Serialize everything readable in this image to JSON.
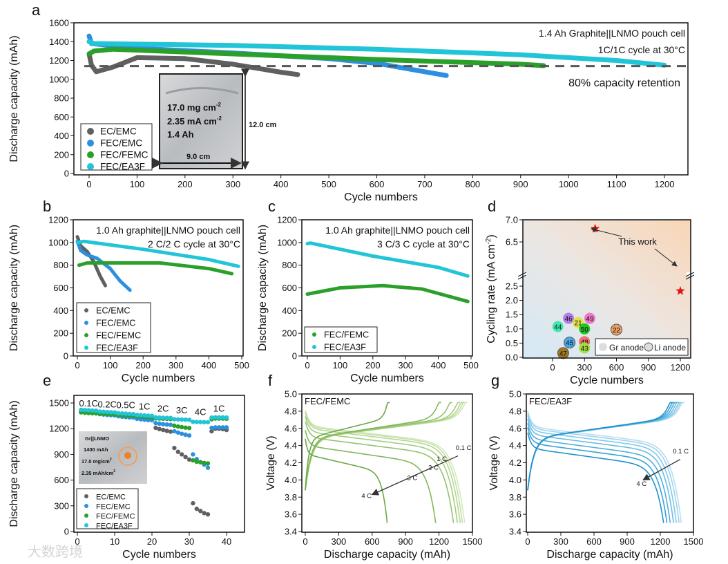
{
  "watermark": "大数跨境",
  "chart_data": [
    {
      "id": "a",
      "type": "scatter",
      "panel_letter": "a",
      "title": "1.4 Ah Graphite||LNMO pouch cell",
      "subtitle": "1C/1C cycle at 30°C",
      "xlabel": "Cycle numbers",
      "ylabel": "Discharge capacity (mAh)",
      "xlim": [
        0,
        1200
      ],
      "ylim": [
        0,
        1600
      ],
      "xticks": [
        "0",
        "100",
        "200",
        "300",
        "400",
        "500",
        "600",
        "700",
        "800",
        "900",
        "1000",
        "1100",
        "1200"
      ],
      "yticks": [
        "0",
        "200",
        "400",
        "600",
        "800",
        "1000",
        "1200",
        "1400",
        "1600"
      ],
      "reference_line": {
        "value": 1140,
        "label": "80% capacity retention",
        "color": "#555555"
      },
      "legend_position": "bottom-left",
      "series": [
        {
          "name": "EC/EMC",
          "color": "#606060",
          "points": [
            [
              0,
              1270
            ],
            [
              5,
              1150
            ],
            [
              15,
              1080
            ],
            [
              50,
              1130
            ],
            [
              100,
              1230
            ],
            [
              200,
              1220
            ],
            [
              300,
              1160
            ],
            [
              400,
              1075
            ],
            [
              435,
              1050
            ]
          ]
        },
        {
          "name": "FEC/EMC",
          "color": "#2e8fe0",
          "points": [
            [
              0,
              1460
            ],
            [
              5,
              1380
            ],
            [
              100,
              1330
            ],
            [
              300,
              1280
            ],
            [
              500,
              1220
            ],
            [
              600,
              1170
            ],
            [
              700,
              1080
            ],
            [
              745,
              1040
            ]
          ]
        },
        {
          "name": "FEC/FEMC",
          "color": "#2aa02a",
          "points": [
            [
              0,
              1270
            ],
            [
              10,
              1300
            ],
            [
              50,
              1320
            ],
            [
              300,
              1270
            ],
            [
              600,
              1210
            ],
            [
              900,
              1160
            ],
            [
              948,
              1145
            ]
          ]
        },
        {
          "name": "FEC/EA3F",
          "color": "#22c4d8",
          "points": [
            [
              0,
              1400
            ],
            [
              10,
              1380
            ],
            [
              300,
              1360
            ],
            [
              600,
              1320
            ],
            [
              900,
              1260
            ],
            [
              1100,
              1200
            ],
            [
              1200,
              1150
            ]
          ]
        }
      ],
      "inset": {
        "loading": "17.0 mg cm",
        "loading_sup": "-2",
        "current": "2.35 mA cm",
        "current_sup": "-2",
        "capacity": "1.4 Ah",
        "height": "12.0 cm",
        "width": "9.0 cm"
      }
    },
    {
      "id": "b",
      "type": "scatter",
      "panel_letter": "b",
      "title": "1.0 Ah graphite||LNMO pouch cell",
      "subtitle": "2 C/2 C cycle at 30°C",
      "xlabel": "Cycle numbers",
      "ylabel": "Discharge capacity (mAh)",
      "xlim": [
        0,
        500
      ],
      "ylim": [
        0,
        1200
      ],
      "xticks": [
        "0",
        "100",
        "200",
        "300",
        "400",
        "500"
      ],
      "yticks": [
        "0",
        "200",
        "400",
        "600",
        "800",
        "1000",
        "1200"
      ],
      "legend_position": "bottom-left",
      "series": [
        {
          "name": "EC/EMC",
          "color": "#606060",
          "points": [
            [
              0,
              1050
            ],
            [
              10,
              970
            ],
            [
              30,
              920
            ],
            [
              50,
              830
            ],
            [
              70,
              700
            ],
            [
              85,
              620
            ]
          ]
        },
        {
          "name": "FEC/EMC",
          "color": "#2e8fe0",
          "points": [
            [
              0,
              1010
            ],
            [
              10,
              930
            ],
            [
              30,
              890
            ],
            [
              60,
              860
            ],
            [
              100,
              770
            ],
            [
              130,
              660
            ],
            [
              160,
              580
            ]
          ]
        },
        {
          "name": "FEC/FEMC",
          "color": "#2aa02a",
          "points": [
            [
              5,
              800
            ],
            [
              30,
              820
            ],
            [
              250,
              820
            ],
            [
              400,
              770
            ],
            [
              470,
              725
            ]
          ]
        },
        {
          "name": "FEC/EA3F",
          "color": "#22c4d8",
          "points": [
            [
              0,
              1000
            ],
            [
              20,
              1010
            ],
            [
              200,
              940
            ],
            [
              400,
              850
            ],
            [
              490,
              790
            ]
          ]
        }
      ]
    },
    {
      "id": "c",
      "type": "scatter",
      "panel_letter": "c",
      "title": "1.0 Ah graphite||LNMO pouch cell",
      "subtitle": "3 C/3 C cycle at 30°C",
      "xlabel": "Cycle numbers",
      "ylabel": "Discharge capacity (mAh)",
      "xlim": [
        0,
        500
      ],
      "ylim": [
        0,
        1200
      ],
      "xticks": [
        "0",
        "100",
        "200",
        "300",
        "400",
        "500"
      ],
      "yticks": [
        "0",
        "200",
        "400",
        "600",
        "800",
        "1000",
        "1200"
      ],
      "legend_position": "bottom-left",
      "series": [
        {
          "name": "FEC/FEMC",
          "color": "#2aa02a",
          "points": [
            [
              0,
              545
            ],
            [
              100,
              600
            ],
            [
              230,
              620
            ],
            [
              350,
              590
            ],
            [
              490,
              480
            ]
          ]
        },
        {
          "name": "FEC/EA3F",
          "color": "#22c4d8",
          "points": [
            [
              0,
              990
            ],
            [
              10,
              995
            ],
            [
              200,
              880
            ],
            [
              400,
              780
            ],
            [
              490,
              705
            ]
          ]
        }
      ]
    },
    {
      "id": "d",
      "type": "scatter",
      "panel_letter": "d",
      "xlabel": "Cycle numbers",
      "ylabel": "Cycling rate (mA cm",
      "ylabel_sup": "-2",
      "ylabel_end": ")",
      "xlim": [
        0,
        1200
      ],
      "ylim": [
        0,
        7.0
      ],
      "y_break": [
        2.75,
        6.25
      ],
      "xticks": [
        "0",
        "300",
        "600",
        "900",
        "1200"
      ],
      "yticks": [
        "0.0",
        "0.5",
        "1.0",
        "1.5",
        "2.0",
        "2.5",
        "6.5",
        "7.0"
      ],
      "annotation": "This work",
      "legend": [
        "Gr anode",
        "Li anode"
      ],
      "legend_position": "bottom-right",
      "points": [
        {
          "label": "46",
          "x": 150,
          "y": 1.37,
          "color": "#b57be8",
          "anode": "Gr"
        },
        {
          "label": "21",
          "x": 240,
          "y": 1.22,
          "color": "#e2e04e",
          "anode": "Gr"
        },
        {
          "label": "49",
          "x": 350,
          "y": 1.37,
          "color": "#ee77c8",
          "anode": "Gr"
        },
        {
          "label": "44",
          "x": 50,
          "y": 1.08,
          "color": "#40e8b0",
          "anode": "Gr"
        },
        {
          "label": "50",
          "x": 300,
          "y": 1.0,
          "color": "#22c422",
          "anode": "Gr"
        },
        {
          "label": "22",
          "x": 600,
          "y": 0.97,
          "color": "#e8a060",
          "anode": "Li"
        },
        {
          "label": "45",
          "x": 160,
          "y": 0.52,
          "color": "#4aa8e8",
          "anode": "Li"
        },
        {
          "label": "48",
          "x": 300,
          "y": 0.55,
          "color": "#ee7070",
          "anode": "Gr"
        },
        {
          "label": "43",
          "x": 300,
          "y": 0.33,
          "color": "#a0e040",
          "anode": "Gr"
        },
        {
          "label": "47",
          "x": 100,
          "y": 0.15,
          "color": "#a07820",
          "anode": "Li"
        }
      ],
      "this_work": [
        {
          "x": 400,
          "y": 6.8
        },
        {
          "x": 1200,
          "y": 2.33
        }
      ],
      "star_color": "#e81010"
    },
    {
      "id": "e",
      "type": "scatter",
      "panel_letter": "e",
      "xlabel": "Cycle numbers",
      "ylabel": "Discharge capacity (mAh)",
      "xlim": [
        0,
        45
      ],
      "ylim": [
        0,
        1600
      ],
      "xticks": [
        "0",
        "10",
        "20",
        "30",
        "40"
      ],
      "yticks": [
        "0",
        "300",
        "600",
        "900",
        "1200",
        "1500"
      ],
      "rate_labels": [
        {
          "text": "0.1C",
          "x": 3,
          "y": 1490
        },
        {
          "text": "0.2C",
          "x": 8,
          "y": 1480
        },
        {
          "text": "0.5C",
          "x": 13,
          "y": 1470
        },
        {
          "text": "1C",
          "x": 18,
          "y": 1455
        },
        {
          "text": "2C",
          "x": 23,
          "y": 1430
        },
        {
          "text": "3C",
          "x": 28,
          "y": 1410
        },
        {
          "text": "4C",
          "x": 33,
          "y": 1390
        },
        {
          "text": "1C",
          "x": 38,
          "y": 1430
        }
      ],
      "inset": {
        "line1": "Gr||LNMO",
        "line2": "1400 mAh",
        "line3": "17.0 mg/cm",
        "line3_sup": "2",
        "line4": "2.35 mAh/cm",
        "line4_sup": "2"
      },
      "legend_position": "bottom-left",
      "series": [
        {
          "name": "EC/EMC",
          "color": "#606060",
          "values": [
            1405,
            1400,
            1395,
            1392,
            1390,
            1375,
            1372,
            1368,
            1365,
            1362,
            1350,
            1345,
            1342,
            1340,
            1338,
            1320,
            1315,
            1312,
            1308,
            1305,
            1210,
            1195,
            1185,
            1175,
            1165,
            975,
            930,
            900,
            870,
            840,
            330,
            265,
            240,
            215,
            200,
            1170,
            1200,
            1200,
            1195,
            1185
          ]
        },
        {
          "name": "FEC/EMC",
          "color": "#2e8fe0",
          "values": [
            1400,
            1395,
            1392,
            1390,
            1388,
            1370,
            1365,
            1360,
            1358,
            1355,
            1345,
            1340,
            1335,
            1332,
            1330,
            1315,
            1310,
            1305,
            1300,
            1298,
            1265,
            1258,
            1252,
            1248,
            1245,
            1170,
            1155,
            1140,
            1130,
            1120,
            900,
            845,
            810,
            780,
            745,
            1210,
            1215,
            1215,
            1215,
            1215
          ]
        },
        {
          "name": "FEC/FEMC",
          "color": "#2aa02a",
          "values": [
            1390,
            1385,
            1382,
            1380,
            1378,
            1375,
            1372,
            1370,
            1368,
            1365,
            1360,
            1358,
            1355,
            1352,
            1350,
            1345,
            1342,
            1340,
            1338,
            1335,
            1320,
            1318,
            1316,
            1315,
            1313,
            1235,
            1225,
            1218,
            1212,
            1208,
            830,
            815,
            808,
            800,
            795,
            1310,
            1318,
            1318,
            1318,
            1316
          ]
        },
        {
          "name": "FEC/EA3F",
          "color": "#22c4d8",
          "values": [
            1420,
            1418,
            1415,
            1412,
            1410,
            1400,
            1398,
            1395,
            1392,
            1390,
            1380,
            1378,
            1375,
            1372,
            1370,
            1360,
            1358,
            1355,
            1352,
            1350,
            1332,
            1330,
            1328,
            1326,
            1325,
            1310,
            1308,
            1306,
            1305,
            1303,
            1280,
            1278,
            1277,
            1276,
            1275,
            1330,
            1332,
            1332,
            1332,
            1330
          ]
        }
      ]
    },
    {
      "id": "f",
      "type": "line",
      "panel_letter": "f",
      "title": "FEC/FEMC",
      "xlabel": "Discharge capacity (mAh)",
      "ylabel": "Voltage (V)",
      "xlim": [
        0,
        1500
      ],
      "ylim": [
        3.4,
        5.0
      ],
      "xticks": [
        "0",
        "300",
        "600",
        "900",
        "1200",
        "1500"
      ],
      "yticks": [
        "3.4",
        "3.6",
        "3.8",
        "4.0",
        "4.2",
        "4.4",
        "4.6",
        "4.8",
        "5.0"
      ],
      "curves": [
        {
          "rate": "0.1 C",
          "discharge_capacity": 1430,
          "plateau_v": 4.63,
          "charge_capacity": 1440,
          "color": "#d4e9bf"
        },
        {
          "rate": "0.2 C",
          "discharge_capacity": 1410,
          "plateau_v": 4.62,
          "charge_capacity": 1420,
          "color": "#c4e0a8"
        },
        {
          "rate": "0.5 C",
          "discharge_capacity": 1390,
          "plateau_v": 4.6,
          "charge_capacity": 1400,
          "color": "#b4d792"
        },
        {
          "rate": "1 C",
          "discharge_capacity": 1365,
          "plateau_v": 4.56,
          "charge_capacity": 1370,
          "color": "#a3cd7e"
        },
        {
          "rate": "2 C",
          "discharge_capacity": 1330,
          "plateau_v": 4.5,
          "charge_capacity": 1300,
          "color": "#92c36c"
        },
        {
          "rate": "3 C",
          "discharge_capacity": 1170,
          "plateau_v": 4.4,
          "charge_capacity": 1200,
          "color": "#80b85a"
        },
        {
          "rate": "4 C",
          "discharge_capacity": 735,
          "plateau_v": 4.3,
          "charge_capacity": 740,
          "color": "#6aa846"
        }
      ],
      "rate_labels": [
        {
          "text": "0.1 C",
          "x": 1420,
          "y": 4.35
        },
        {
          "text": "1 C",
          "x": 1225,
          "y": 4.22
        },
        {
          "text": "2 C",
          "x": 1150,
          "y": 4.12
        },
        {
          "text": "3 C",
          "x": 960,
          "y": 4.0
        },
        {
          "text": "4 C",
          "x": 550,
          "y": 3.79
        }
      ],
      "arrow": {
        "from": [
          1370,
          4.28
        ],
        "to": [
          600,
          3.83
        ]
      }
    },
    {
      "id": "g",
      "type": "line",
      "panel_letter": "g",
      "title": "FEC/EA3F",
      "xlabel": "Discharge capacity (mAh)",
      "ylabel": "Voltage (V)",
      "xlim": [
        0,
        1500
      ],
      "ylim": [
        3.4,
        5.0
      ],
      "xticks": [
        "0",
        "300",
        "600",
        "900",
        "1200",
        "1500"
      ],
      "yticks": [
        "3.4",
        "3.6",
        "3.8",
        "4.0",
        "4.2",
        "4.4",
        "4.6",
        "4.8",
        "5.0"
      ],
      "curves": [
        {
          "rate": "0.1 C",
          "discharge_capacity": 1390,
          "plateau_v": 4.62,
          "charge_capacity": 1400,
          "color": "#b6def2"
        },
        {
          "rate": "0.2 C",
          "discharge_capacity": 1370,
          "plateau_v": 4.6,
          "charge_capacity": 1385,
          "color": "#9ed3ee"
        },
        {
          "rate": "0.5 C",
          "discharge_capacity": 1345,
          "plateau_v": 4.57,
          "charge_capacity": 1370,
          "color": "#84c7e8"
        },
        {
          "rate": "1 C",
          "discharge_capacity": 1320,
          "plateau_v": 4.53,
          "charge_capacity": 1350,
          "color": "#6bbbe2"
        },
        {
          "rate": "2 C",
          "discharge_capacity": 1290,
          "plateau_v": 4.48,
          "charge_capacity": 1330,
          "color": "#52aedb"
        },
        {
          "rate": "3 C",
          "discharge_capacity": 1260,
          "plateau_v": 4.43,
          "charge_capacity": 1310,
          "color": "#38a1d4"
        },
        {
          "rate": "4 C",
          "discharge_capacity": 1230,
          "plateau_v": 4.37,
          "charge_capacity": 1290,
          "color": "#1f92cc"
        }
      ],
      "rate_labels": [
        {
          "text": "0.1 C",
          "x": 1385,
          "y": 4.31
        },
        {
          "text": "4 C",
          "x": 1030,
          "y": 3.93
        }
      ],
      "arrow": {
        "from": [
          1380,
          4.24
        ],
        "to": [
          1045,
          4.0
        ]
      }
    }
  ]
}
